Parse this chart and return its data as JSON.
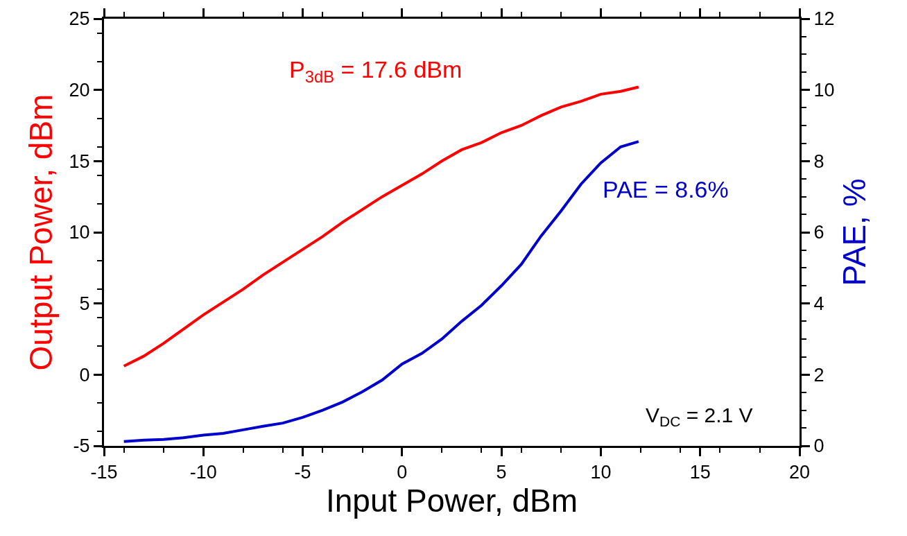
{
  "chart_data": {
    "type": "line",
    "xlabel": "Input Power, dBm",
    "ylabel": "Output Power, dBm",
    "y2label": "PAE, %",
    "xlim": [
      -15,
      20
    ],
    "xticks": [
      -15,
      -10,
      -5,
      0,
      5,
      10,
      15,
      20
    ],
    "ylim": [
      -5,
      25
    ],
    "yticks": [
      -5,
      0,
      5,
      10,
      15,
      20,
      25
    ],
    "y2lim": [
      0,
      12
    ],
    "y2ticks": [
      0,
      2,
      4,
      6,
      8,
      10,
      12
    ],
    "x": [
      -14,
      -13,
      -12,
      -11,
      -10,
      -9,
      -8,
      -7,
      -6,
      -5,
      -4,
      -3,
      -2,
      -1,
      0,
      1,
      2,
      3,
      4,
      5,
      6,
      7,
      8,
      9,
      10,
      11,
      11.9
    ],
    "series": [
      {
        "color": "#ff0000",
        "values": [
          0.6,
          1.3,
          2.2,
          3.2,
          4.2,
          5.1,
          6.0,
          7.0,
          7.9,
          8.8,
          9.7,
          10.7,
          11.6,
          12.5,
          13.3,
          14.1,
          15.0,
          15.8,
          16.3,
          17.0,
          17.5,
          18.2,
          18.8,
          19.2,
          19.7,
          19.9,
          20.2
        ]
      },
      {
        "color": "#0000cc",
        "axis": "y2",
        "values": [
          0.12,
          0.16,
          0.18,
          0.23,
          0.3,
          0.35,
          0.45,
          0.55,
          0.64,
          0.8,
          1.0,
          1.23,
          1.52,
          1.85,
          2.3,
          2.6,
          3.0,
          3.5,
          3.95,
          4.5,
          5.1,
          5.9,
          6.6,
          7.35,
          7.95,
          8.4,
          8.55
        ]
      }
    ],
    "annotations": [
      "P$_{3dB}$ = 17.6 dBm",
      "PAE = 8.6%",
      "V$_{DC}$ = 2.1 V"
    ],
    "grid": false,
    "marker": "none",
    "line_style": "solid"
  }
}
